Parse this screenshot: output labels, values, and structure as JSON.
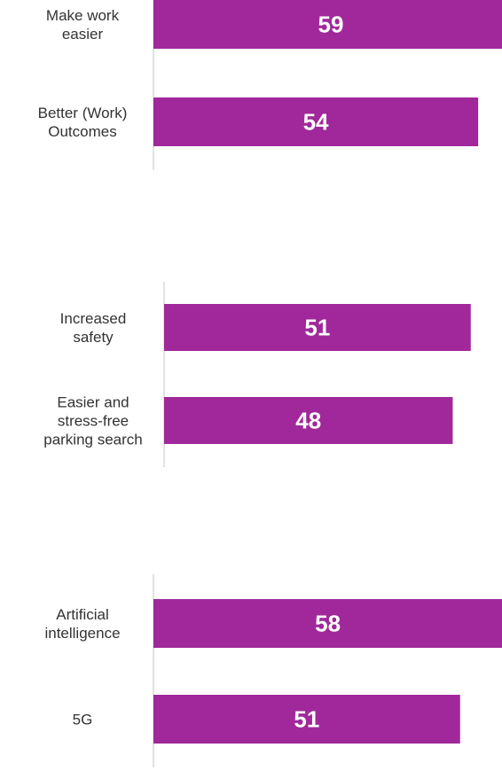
{
  "chart_data": [
    {
      "type": "bar",
      "orientation": "horizontal",
      "categories": [
        [
          "Make work",
          "easier"
        ],
        [
          "Better (Work)",
          "Outcomes"
        ]
      ],
      "values": [
        59,
        54
      ],
      "title": "",
      "xlabel": "",
      "ylabel": "",
      "xlim": [
        0,
        60
      ],
      "grid": false
    },
    {
      "type": "bar",
      "orientation": "horizontal",
      "categories": [
        [
          "Increased",
          "safety"
        ],
        [
          "Easier and",
          "stress-free",
          "parking search"
        ]
      ],
      "values": [
        51,
        48
      ],
      "title": "",
      "xlabel": "",
      "ylabel": "",
      "xlim": [
        0,
        60
      ],
      "grid": false
    },
    {
      "type": "bar",
      "orientation": "horizontal",
      "categories": [
        [
          "Artificial",
          "intelligence"
        ],
        [
          "5G"
        ]
      ],
      "values": [
        58,
        51
      ],
      "title": "",
      "xlabel": "",
      "ylabel": "",
      "xlim": [
        0,
        60
      ],
      "grid": false
    }
  ],
  "colors": {
    "bar": "#a0289a",
    "axis": "#cfcfcf",
    "value_text": "#ffffff",
    "category_text": "#333333"
  }
}
